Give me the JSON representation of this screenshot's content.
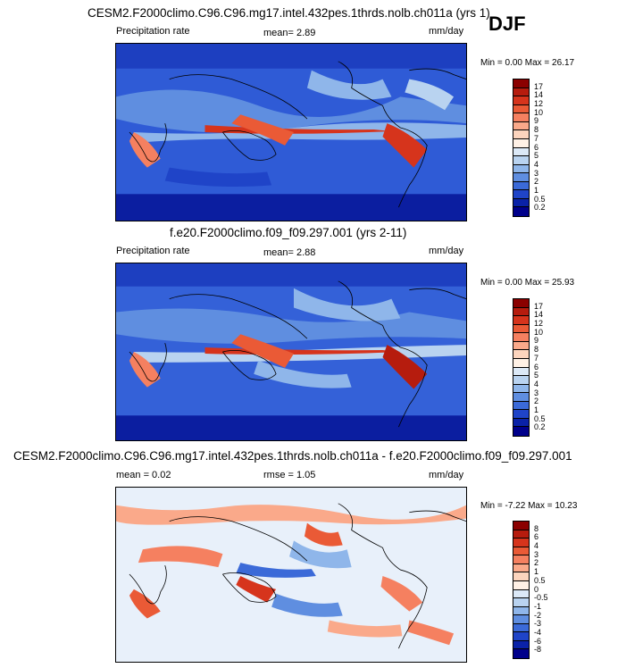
{
  "season": "DJF",
  "panel1": {
    "title": "CESM2.F2000climo.C96.C96.mg17.intel.432pes.1thrds.nolb.ch011a (yrs 1)",
    "field": "Precipitation rate",
    "mean": "mean=  2.89",
    "units": "mm/day",
    "minmax": "Min =   0.00 Max =  26.17"
  },
  "panel2": {
    "title": "f.e20.F2000climo.f09_f09.297.001 (yrs 2-11)",
    "field": "Precipitation rate",
    "mean": "mean=  2.88",
    "units": "mm/day",
    "minmax": "Min =   0.00 Max =  25.93"
  },
  "panel3": {
    "title": "CESM2.F2000climo.C96.C96.mg17.intel.432pes.1thrds.nolb.ch011a - f.e20.F2000climo.f09_f09.297.001",
    "mean": "mean =   0.02",
    "rmse": "rmse =   1.05",
    "units": "mm/day",
    "minmax": "Min =  -7.22 Max =  10.23"
  },
  "precip_colorbar": {
    "labels": [
      "17",
      "14",
      "12",
      "10",
      "9",
      "8",
      "7",
      "6",
      "5",
      "4",
      "3",
      "2",
      "1",
      "0.5",
      "0.2"
    ],
    "colors": [
      "#8b0000",
      "#b61c0e",
      "#d6341c",
      "#ea5a36",
      "#f58060",
      "#faa98a",
      "#fcd4bd",
      "#fff1e6",
      "#dce9f7",
      "#b9d3f0",
      "#8fb6ea",
      "#5f8ee0",
      "#3b6ad8",
      "#1f44c8",
      "#0a22a8",
      "#00008b"
    ]
  },
  "diff_colorbar": {
    "labels": [
      "8",
      "6",
      "4",
      "3",
      "2",
      "1",
      "0.5",
      "0",
      "-0.5",
      "-1",
      "-2",
      "-3",
      "-4",
      "-6",
      "-8"
    ],
    "colors": [
      "#8b0000",
      "#b61c0e",
      "#d6341c",
      "#ea5a36",
      "#f58060",
      "#faa98a",
      "#fcd4bd",
      "#fff1e6",
      "#dce9f7",
      "#b9d3f0",
      "#8fb6ea",
      "#5f8ee0",
      "#3b6ad8",
      "#1f44c8",
      "#0a22a8",
      "#00008b"
    ]
  }
}
